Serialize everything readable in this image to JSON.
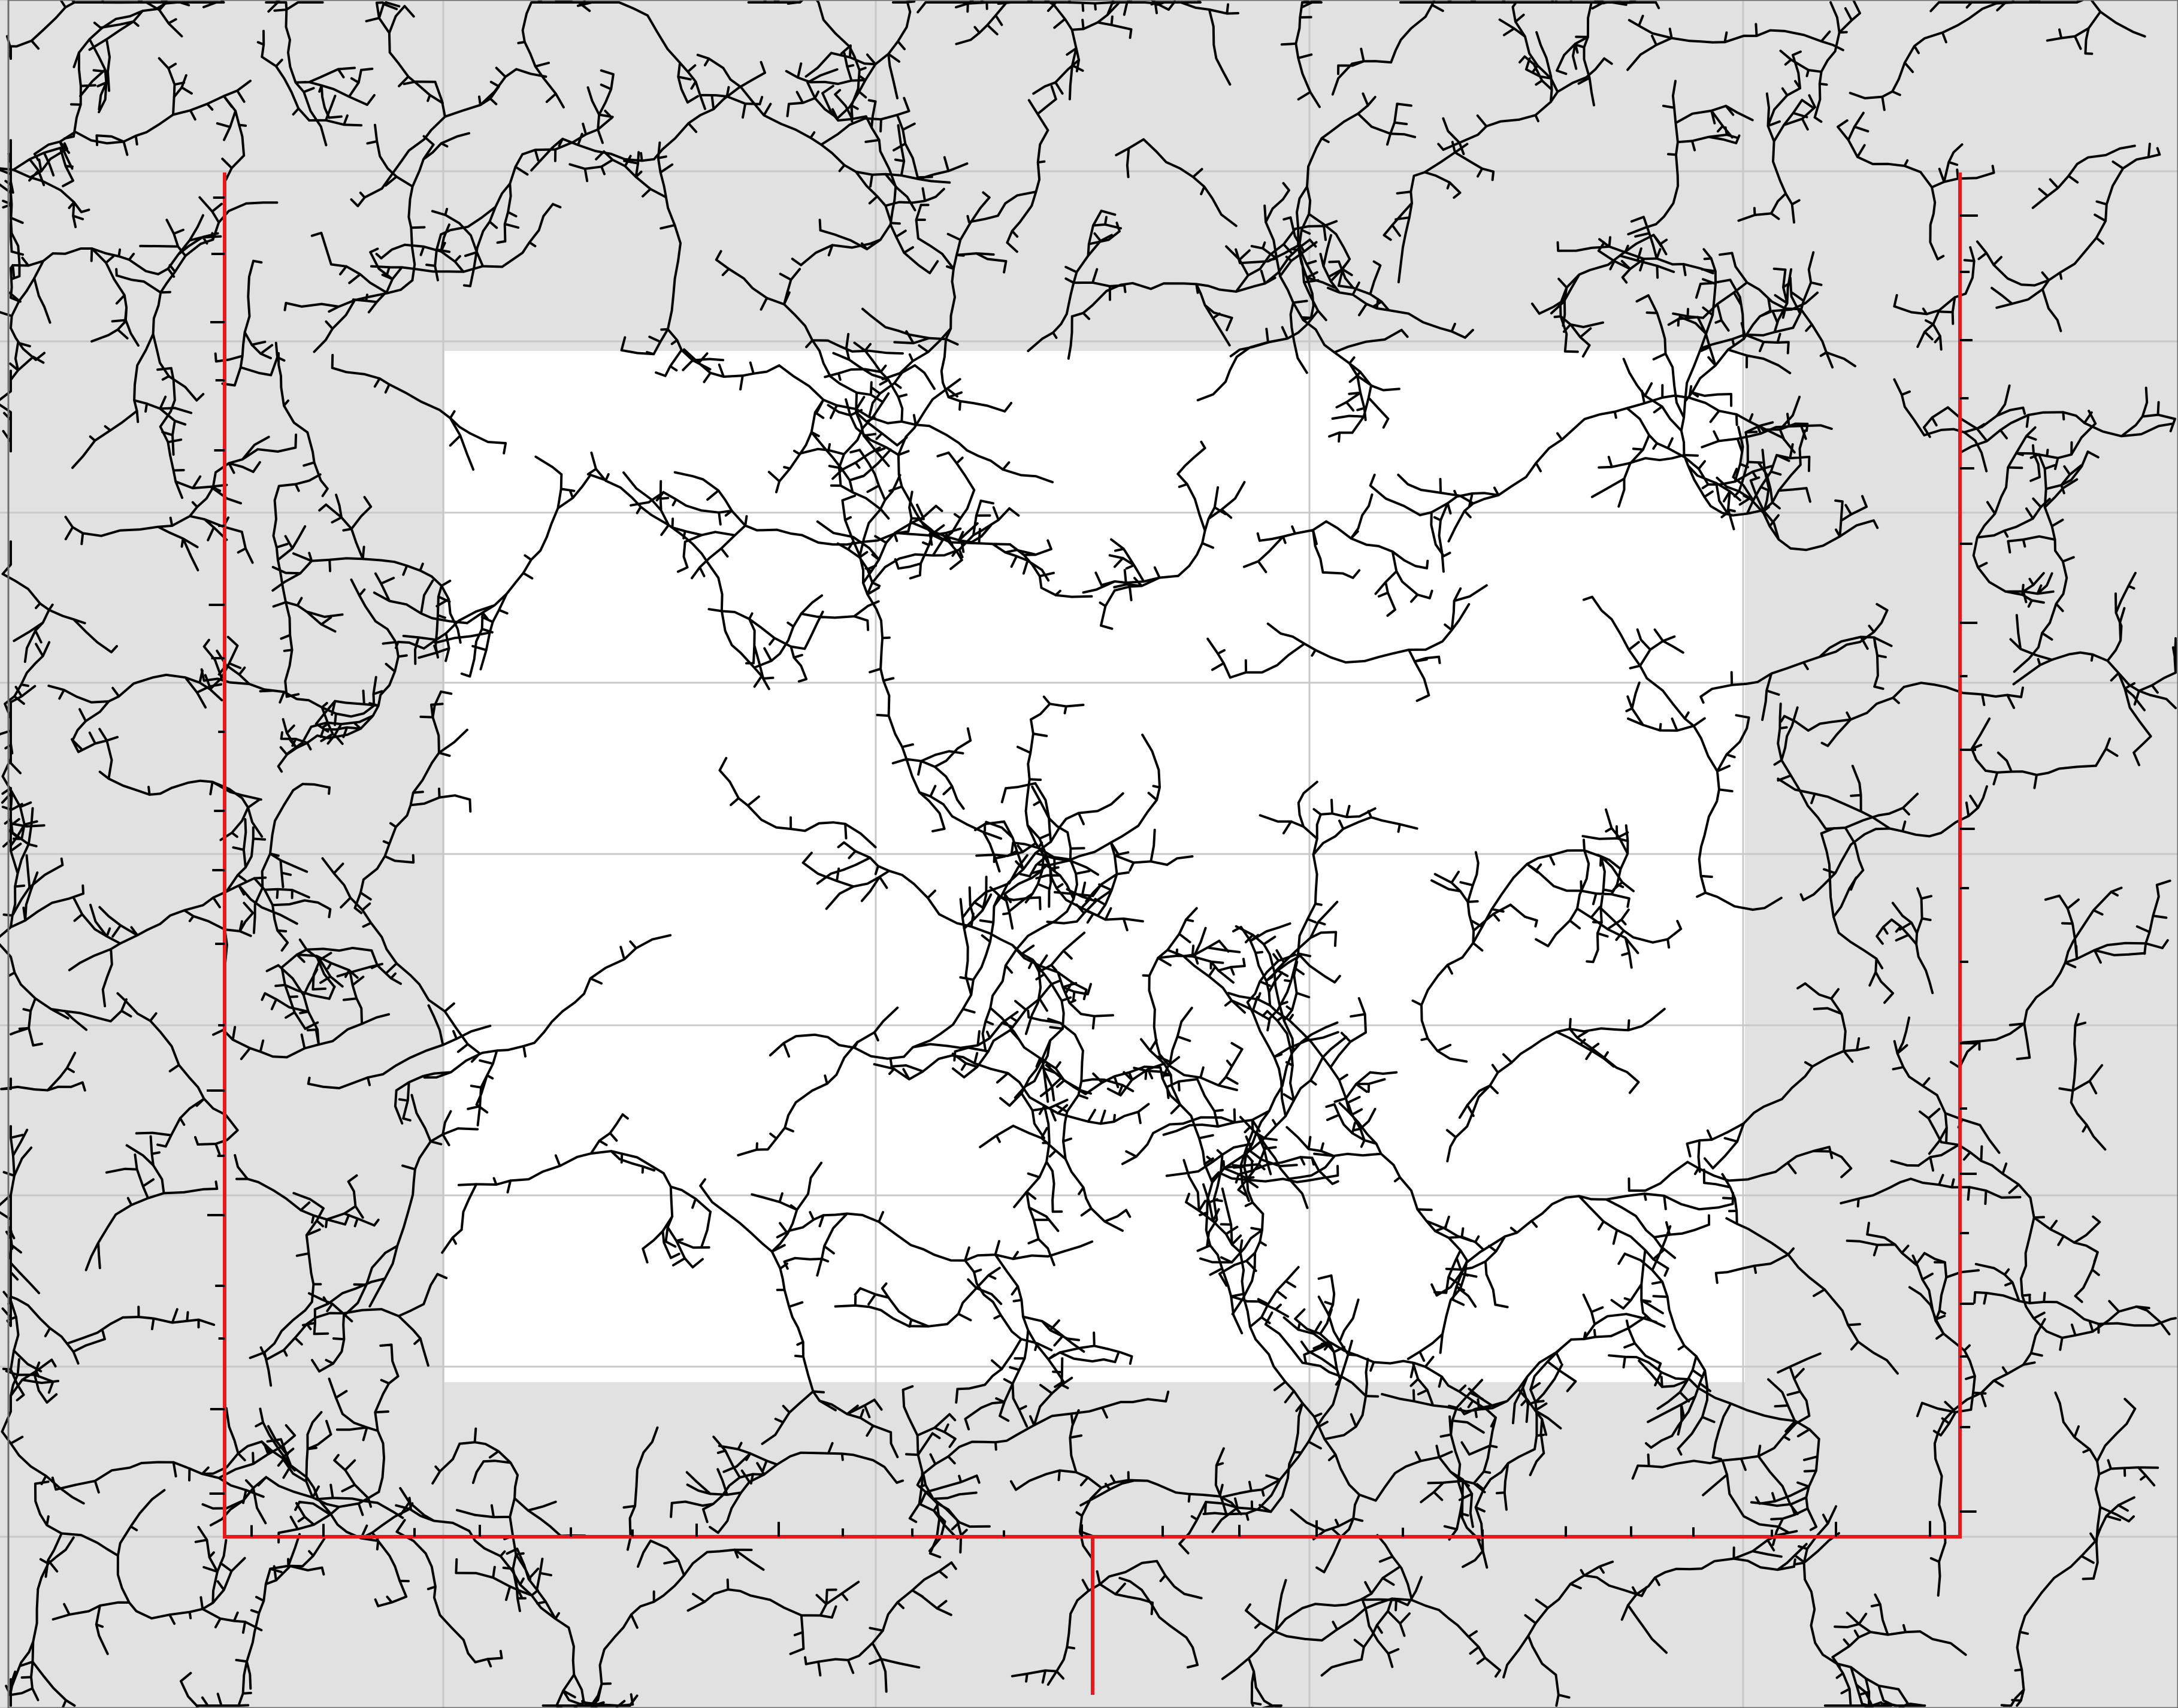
{
  "figure": {
    "kind": "tree-growth-diagram",
    "text_labels": [],
    "colors": {
      "background_outer": "#e1e1e1",
      "background_inner": "#ffffff",
      "grid_line": "#c8c8c8",
      "tree_line": "#000000",
      "boundary_line": "#e41a1c"
    },
    "grid": {
      "rows": 9,
      "cols": 5,
      "visible": true
    },
    "regions": [
      {
        "name": "outer-region",
        "fill": "gray"
      },
      {
        "name": "inner-region",
        "fill": "white"
      }
    ],
    "boundary": {
      "color": "red",
      "shape": "open-bottom-rectangle-with-stem"
    },
    "branch_structure": {
      "color": "black",
      "style": "branching-fractal-trees"
    }
  }
}
